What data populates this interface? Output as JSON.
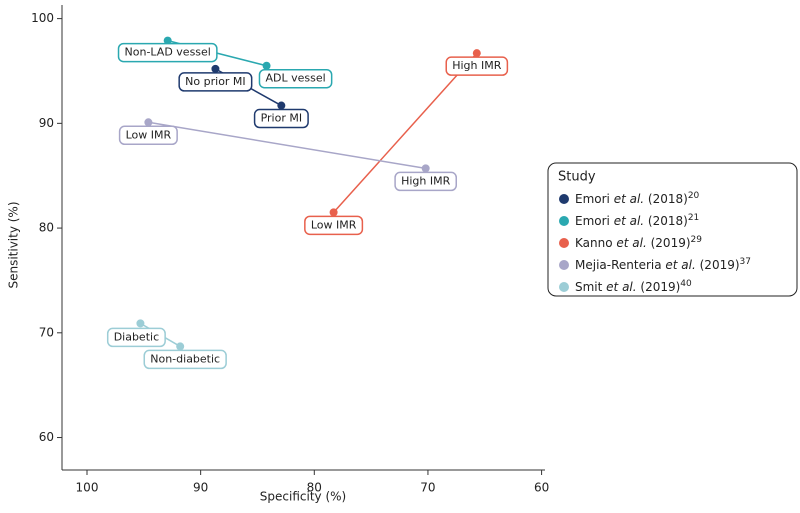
{
  "chart_data": {
    "type": "scatter",
    "x_label": "Specificity (%)",
    "y_label": "Sensitivity (%)",
    "xlim": [
      102.2,
      59.7
    ],
    "ylim": [
      56.9,
      101.3
    ],
    "xticks": [
      100,
      90,
      80,
      70,
      60
    ],
    "yticks": [
      60,
      70,
      80,
      90,
      100
    ],
    "legend_title": "Study",
    "legend_position": "right",
    "series": [
      {
        "name_parts": [
          "Emori ",
          "et al.",
          " (2018)"
        ],
        "reference": "20",
        "color": "#1f3a6e",
        "x": [
          88.7,
          82.9
        ],
        "values": [
          95.2,
          91.7
        ],
        "labels": [
          "No prior MI",
          "Prior MI"
        ]
      },
      {
        "name_parts": [
          "Emori ",
          "et al.",
          " (2018)"
        ],
        "reference": "21",
        "color": "#2aa8b0",
        "x": [
          92.9,
          84.2
        ],
        "values": [
          97.9,
          95.5
        ],
        "labels": [
          "Non-LAD vessel",
          "ADL vessel"
        ]
      },
      {
        "name_parts": [
          "Kanno ",
          "et al.",
          " (2019)"
        ],
        "reference": "29",
        "color": "#e8604c",
        "x": [
          65.7,
          78.3
        ],
        "values": [
          96.7,
          81.5
        ],
        "labels": [
          "High IMR",
          "Low IMR"
        ]
      },
      {
        "name_parts": [
          "Mejia-Renteria ",
          "et al.",
          " (2019)"
        ],
        "reference": "37",
        "color": "#a8a6c8",
        "x": [
          94.6,
          70.2
        ],
        "values": [
          90.1,
          85.7
        ],
        "labels": [
          "Low IMR",
          "High IMR"
        ]
      },
      {
        "name_parts": [
          "Smit ",
          "et al.",
          " (2019)"
        ],
        "reference": "40",
        "color": "#9ccdd6",
        "x": [
          95.3,
          91.8
        ],
        "values": [
          70.9,
          68.7
        ],
        "labels": [
          "Diabetic",
          "Non-diabetic"
        ]
      }
    ]
  }
}
